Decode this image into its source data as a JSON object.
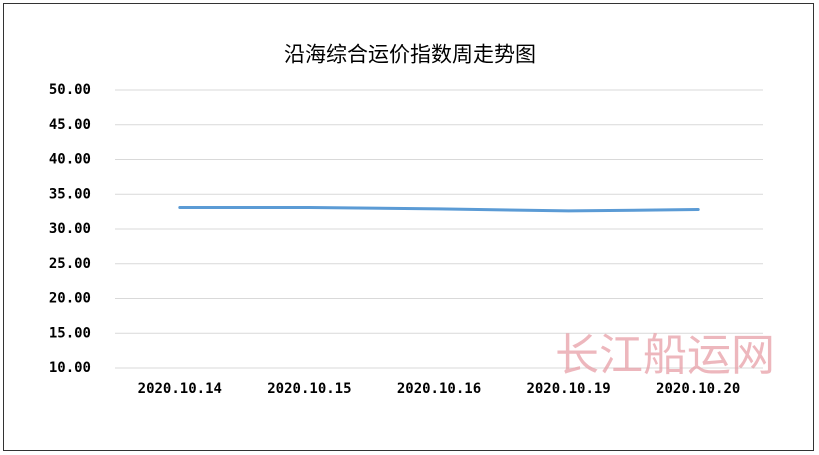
{
  "chart_data": {
    "type": "line",
    "title": "沿海综合运价指数周走势图",
    "categories": [
      "2020.10.14",
      "2020.10.15",
      "2020.10.16",
      "2020.10.19",
      "2020.10.20"
    ],
    "series": [
      {
        "name": "沿海综合运价指数",
        "color": "#5b9bd5",
        "values": [
          33.1,
          33.1,
          32.9,
          32.6,
          32.8
        ]
      }
    ],
    "ylim": [
      10,
      50
    ],
    "yticks": [
      {
        "value": 10,
        "label": "10.00"
      },
      {
        "value": 15,
        "label": "15.00"
      },
      {
        "value": 20,
        "label": "20.00"
      },
      {
        "value": 25,
        "label": "25.00"
      },
      {
        "value": 30,
        "label": "30.00"
      },
      {
        "value": 35,
        "label": "35.00"
      },
      {
        "value": 40,
        "label": "40.00"
      },
      {
        "value": 45,
        "label": "45.00"
      },
      {
        "value": 50,
        "label": "50.00"
      }
    ],
    "grid": true,
    "watermark": "长江船运网"
  }
}
